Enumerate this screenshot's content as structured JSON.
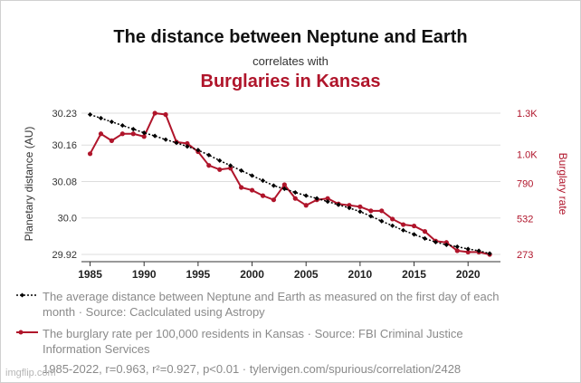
{
  "header": {
    "title": "The distance between Neptune and Earth",
    "connector": "correlates with",
    "subtitle": "Burglaries in Kansas"
  },
  "legend": {
    "series1": "The average distance between Neptune and Earth as measured on the first day of each month · Source: Caclculated using Astropy",
    "series2": "The burglary rate per 100,000 residents in Kansas · Source: FBI Criminal Justice Information Services"
  },
  "stats": "1985-2022, r=0.963, r²=0.927, p<0.01 · tylervigen.com/spurious/correlation/2428",
  "watermark": "imgflip.com",
  "colors": {
    "series1": "#000000",
    "series2": "#b0152b",
    "grid": "#dddddd",
    "text": "#333333"
  },
  "chart_data": {
    "type": "line",
    "x": [
      1985,
      1986,
      1987,
      1988,
      1989,
      1990,
      1991,
      1992,
      1993,
      1994,
      1995,
      1996,
      1997,
      1998,
      1999,
      2000,
      2001,
      2002,
      2003,
      2004,
      2005,
      2006,
      2007,
      2008,
      2009,
      2010,
      2011,
      2012,
      2013,
      2014,
      2015,
      2016,
      2017,
      2018,
      2019,
      2020,
      2021,
      2022
    ],
    "xticks": [
      1985,
      1990,
      1995,
      2000,
      2005,
      2010,
      2015,
      2020
    ],
    "xlim": [
      1984.2,
      2023
    ],
    "left_axis": {
      "label": "Planetary distance (AU)",
      "ticks": [
        29.92,
        30.0,
        30.08,
        30.16,
        30.23
      ],
      "tick_labels": [
        "29.92",
        "30.0",
        "30.08",
        "30.16",
        "30.23"
      ],
      "range": [
        29.92,
        30.23
      ]
    },
    "right_axis": {
      "label": "Burglary rate",
      "ticks": [
        273,
        532,
        790,
        1000,
        1300
      ],
      "tick_labels": [
        "273",
        "532",
        "790",
        "1.0K",
        "1.3K"
      ],
      "range": [
        273,
        1300
      ]
    },
    "grid": "horizontal",
    "series": [
      {
        "axis": "left",
        "marker": "diamond",
        "dashed": true,
        "values": [
          30.227,
          30.219,
          30.211,
          30.203,
          30.195,
          30.187,
          30.18,
          30.172,
          30.165,
          30.157,
          30.149,
          30.138,
          30.126,
          30.115,
          30.104,
          30.093,
          30.082,
          30.071,
          30.064,
          30.056,
          30.049,
          30.043,
          30.036,
          30.029,
          30.022,
          30.014,
          30.004,
          29.993,
          29.983,
          29.973,
          29.964,
          29.955,
          29.947,
          29.941,
          29.937,
          29.932,
          29.928,
          29.922
        ]
      },
      {
        "axis": "right",
        "marker": "circle",
        "dashed": false,
        "values": [
          1005,
          1150,
          1100,
          1150,
          1150,
          1130,
          1300,
          1290,
          1090,
          1080,
          1020,
          920,
          890,
          900,
          760,
          740,
          700,
          670,
          780,
          680,
          630,
          670,
          680,
          640,
          630,
          620,
          590,
          590,
          530,
          490,
          480,
          440,
          370,
          360,
          300,
          290,
          290,
          273
        ]
      }
    ]
  }
}
